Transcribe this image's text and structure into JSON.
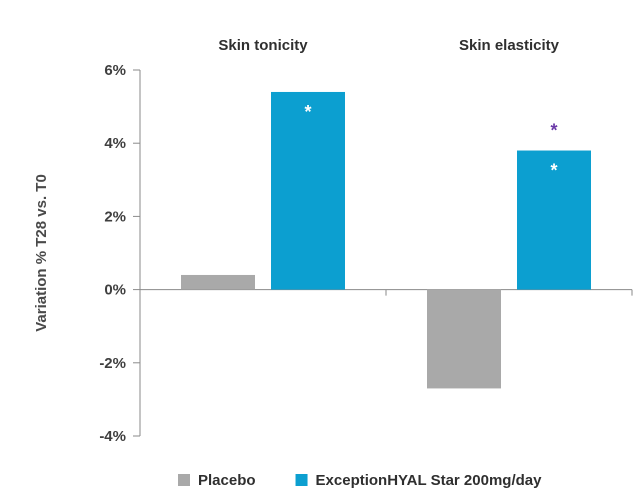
{
  "chart_data": {
    "type": "bar",
    "categories": [
      "Skin tonicity",
      "Skin elasticity"
    ],
    "series": [
      {
        "name": "Placebo",
        "color": "#a9a9a9",
        "values": [
          0.4,
          -2.7
        ]
      },
      {
        "name": "ExceptionHYAL Star 200mg/day",
        "color": "#0c9fd0",
        "values": [
          5.4,
          3.8
        ]
      }
    ],
    "ylabel": "Variation % T28 vs. T0",
    "xlabel": "",
    "ylim": [
      -4,
      6
    ],
    "yticks": [
      -4,
      -2,
      0,
      2,
      4,
      6
    ],
    "ytick_labels": [
      "-4%",
      "-2%",
      "0%",
      "2%",
      "4%",
      "6%"
    ],
    "legend_position": "bottom",
    "grid": false,
    "annotations": [
      {
        "category": "Skin tonicity",
        "series": "ExceptionHYAL Star 200mg/day",
        "text": "*",
        "placement": "inside-top",
        "color": "#ffffff"
      },
      {
        "category": "Skin elasticity",
        "series": "ExceptionHYAL Star 200mg/day",
        "text": "*",
        "placement": "inside-top",
        "color": "#ffffff"
      },
      {
        "category": "Skin elasticity",
        "series": "ExceptionHYAL Star 200mg/day",
        "text": "*",
        "placement": "above",
        "color": "#6b3aa8"
      }
    ]
  },
  "colors": {
    "axis": "#8a8a8a",
    "text": "#3f3f3f"
  }
}
